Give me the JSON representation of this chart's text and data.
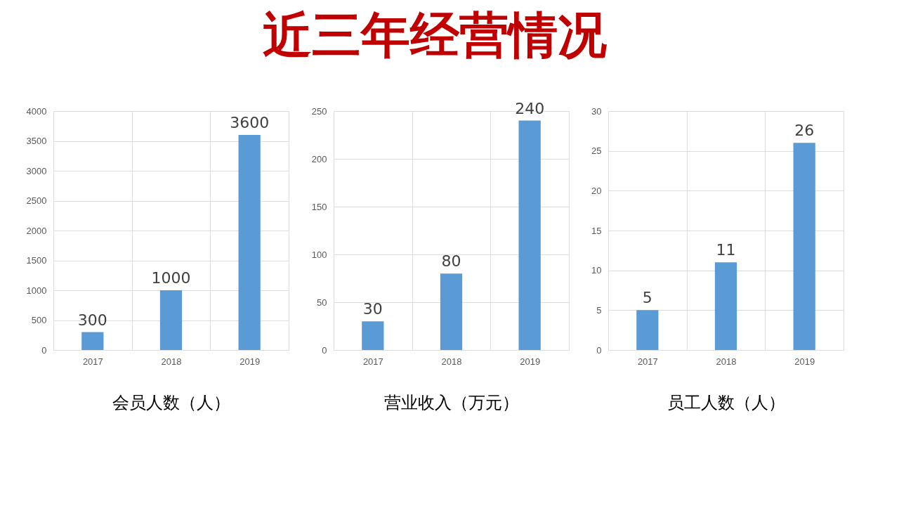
{
  "chart_data": [
    {
      "type": "bar",
      "xlabel": "会员人数（人）",
      "categories": [
        "2017",
        "2018",
        "2019"
      ],
      "values": [
        300,
        1000,
        3600
      ],
      "color": "#5b9bd5",
      "ylim": [
        0,
        4000
      ],
      "yticks": [
        0,
        500,
        1000,
        1500,
        2000,
        2500,
        3000,
        3500,
        4000
      ],
      "grid": true,
      "data_labels": true
    },
    {
      "type": "bar",
      "title": "近三年经营情况",
      "xlabel": "营业收入（万元）",
      "categories": [
        "2017",
        "2018",
        "2019"
      ],
      "values": [
        30,
        80,
        240
      ],
      "color": "#5b9bd5",
      "ylim": [
        0,
        250
      ],
      "yticks": [
        0,
        50,
        100,
        150,
        200,
        250
      ],
      "grid": true,
      "data_labels": true
    },
    {
      "type": "bar",
      "xlabel": "员工人数（人）",
      "categories": [
        "2017",
        "2018",
        "2019"
      ],
      "values": [
        5,
        11,
        26
      ],
      "color": "#5b9bd5",
      "ylim": [
        0,
        30
      ],
      "yticks": [
        0,
        5,
        10,
        15,
        20,
        25,
        30
      ],
      "grid": true,
      "data_labels": true
    }
  ]
}
